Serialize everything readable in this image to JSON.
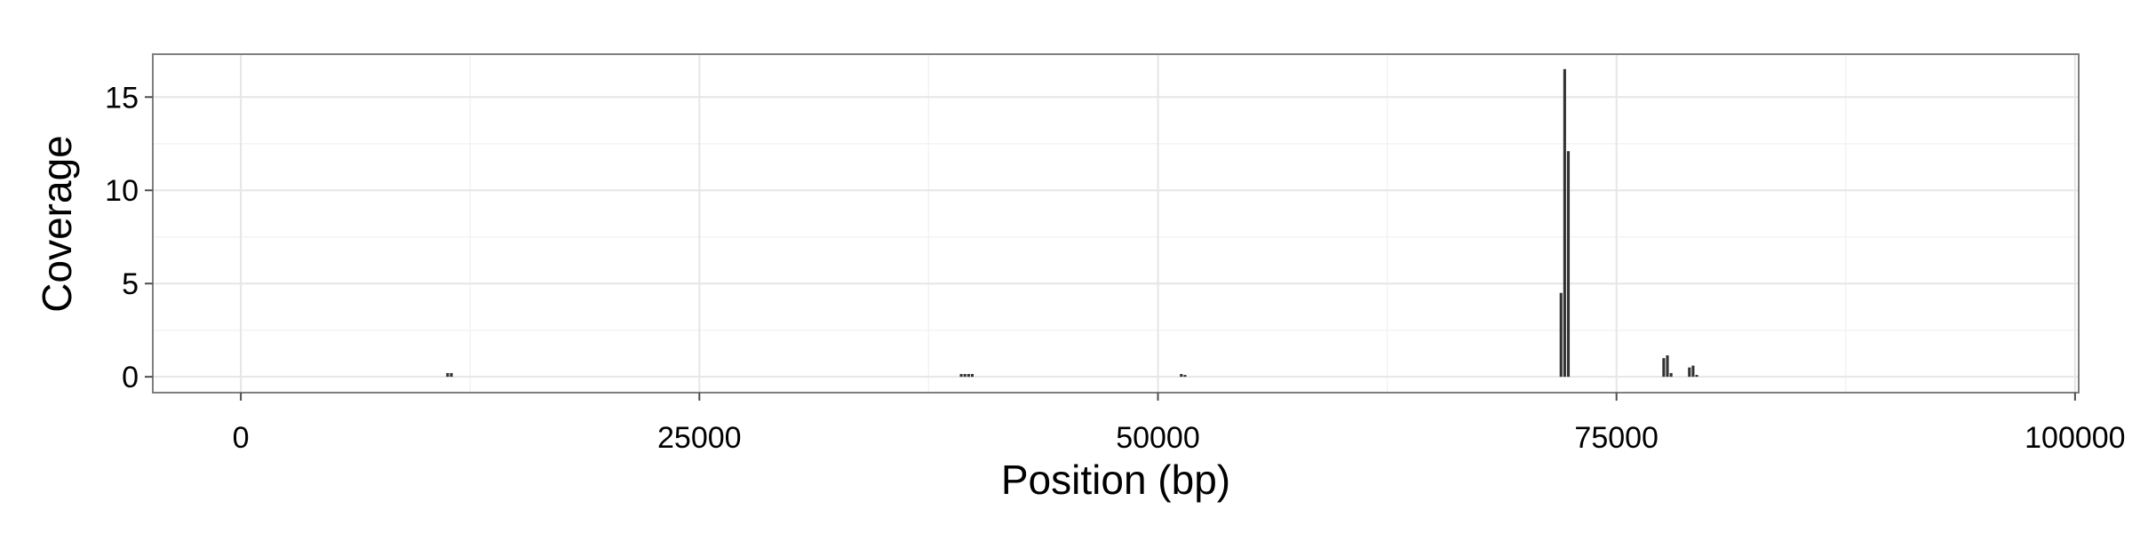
{
  "chart_data": {
    "type": "bar",
    "title": "",
    "xlabel": "Position (bp)",
    "ylabel": "Coverage",
    "xlim": [
      -4800,
      100200
    ],
    "ylim": [
      -0.85,
      17.3
    ],
    "x_ticks": [
      0,
      25000,
      50000,
      75000,
      100000
    ],
    "x_tick_labels": [
      "0",
      "25000",
      "50000",
      "75000",
      "100000"
    ],
    "y_ticks": [
      0,
      5,
      10,
      15
    ],
    "y_tick_labels": [
      "0",
      "5",
      "10",
      "15"
    ],
    "bin_width": 200,
    "grid": true,
    "legend": "none",
    "colors": {
      "bar": "#333333",
      "panel_border": "#7f7f7f",
      "grid_major": "#e6e6e6",
      "grid_minor": "#f3f3f3",
      "tick": "#4d4d4d"
    },
    "series": [
      {
        "x": [
          11300,
          11500,
          39300,
          39500,
          39700,
          39900,
          51300,
          51500,
          72000,
          72200,
          72400,
          77600,
          77800,
          78000,
          79000,
          79200,
          79400
        ],
        "values": [
          0.2,
          0.2,
          0.15,
          0.15,
          0.15,
          0.15,
          0.15,
          0.1,
          4.5,
          16.5,
          12.1,
          1.0,
          1.15,
          0.2,
          0.5,
          0.6,
          0.1
        ]
      }
    ]
  }
}
